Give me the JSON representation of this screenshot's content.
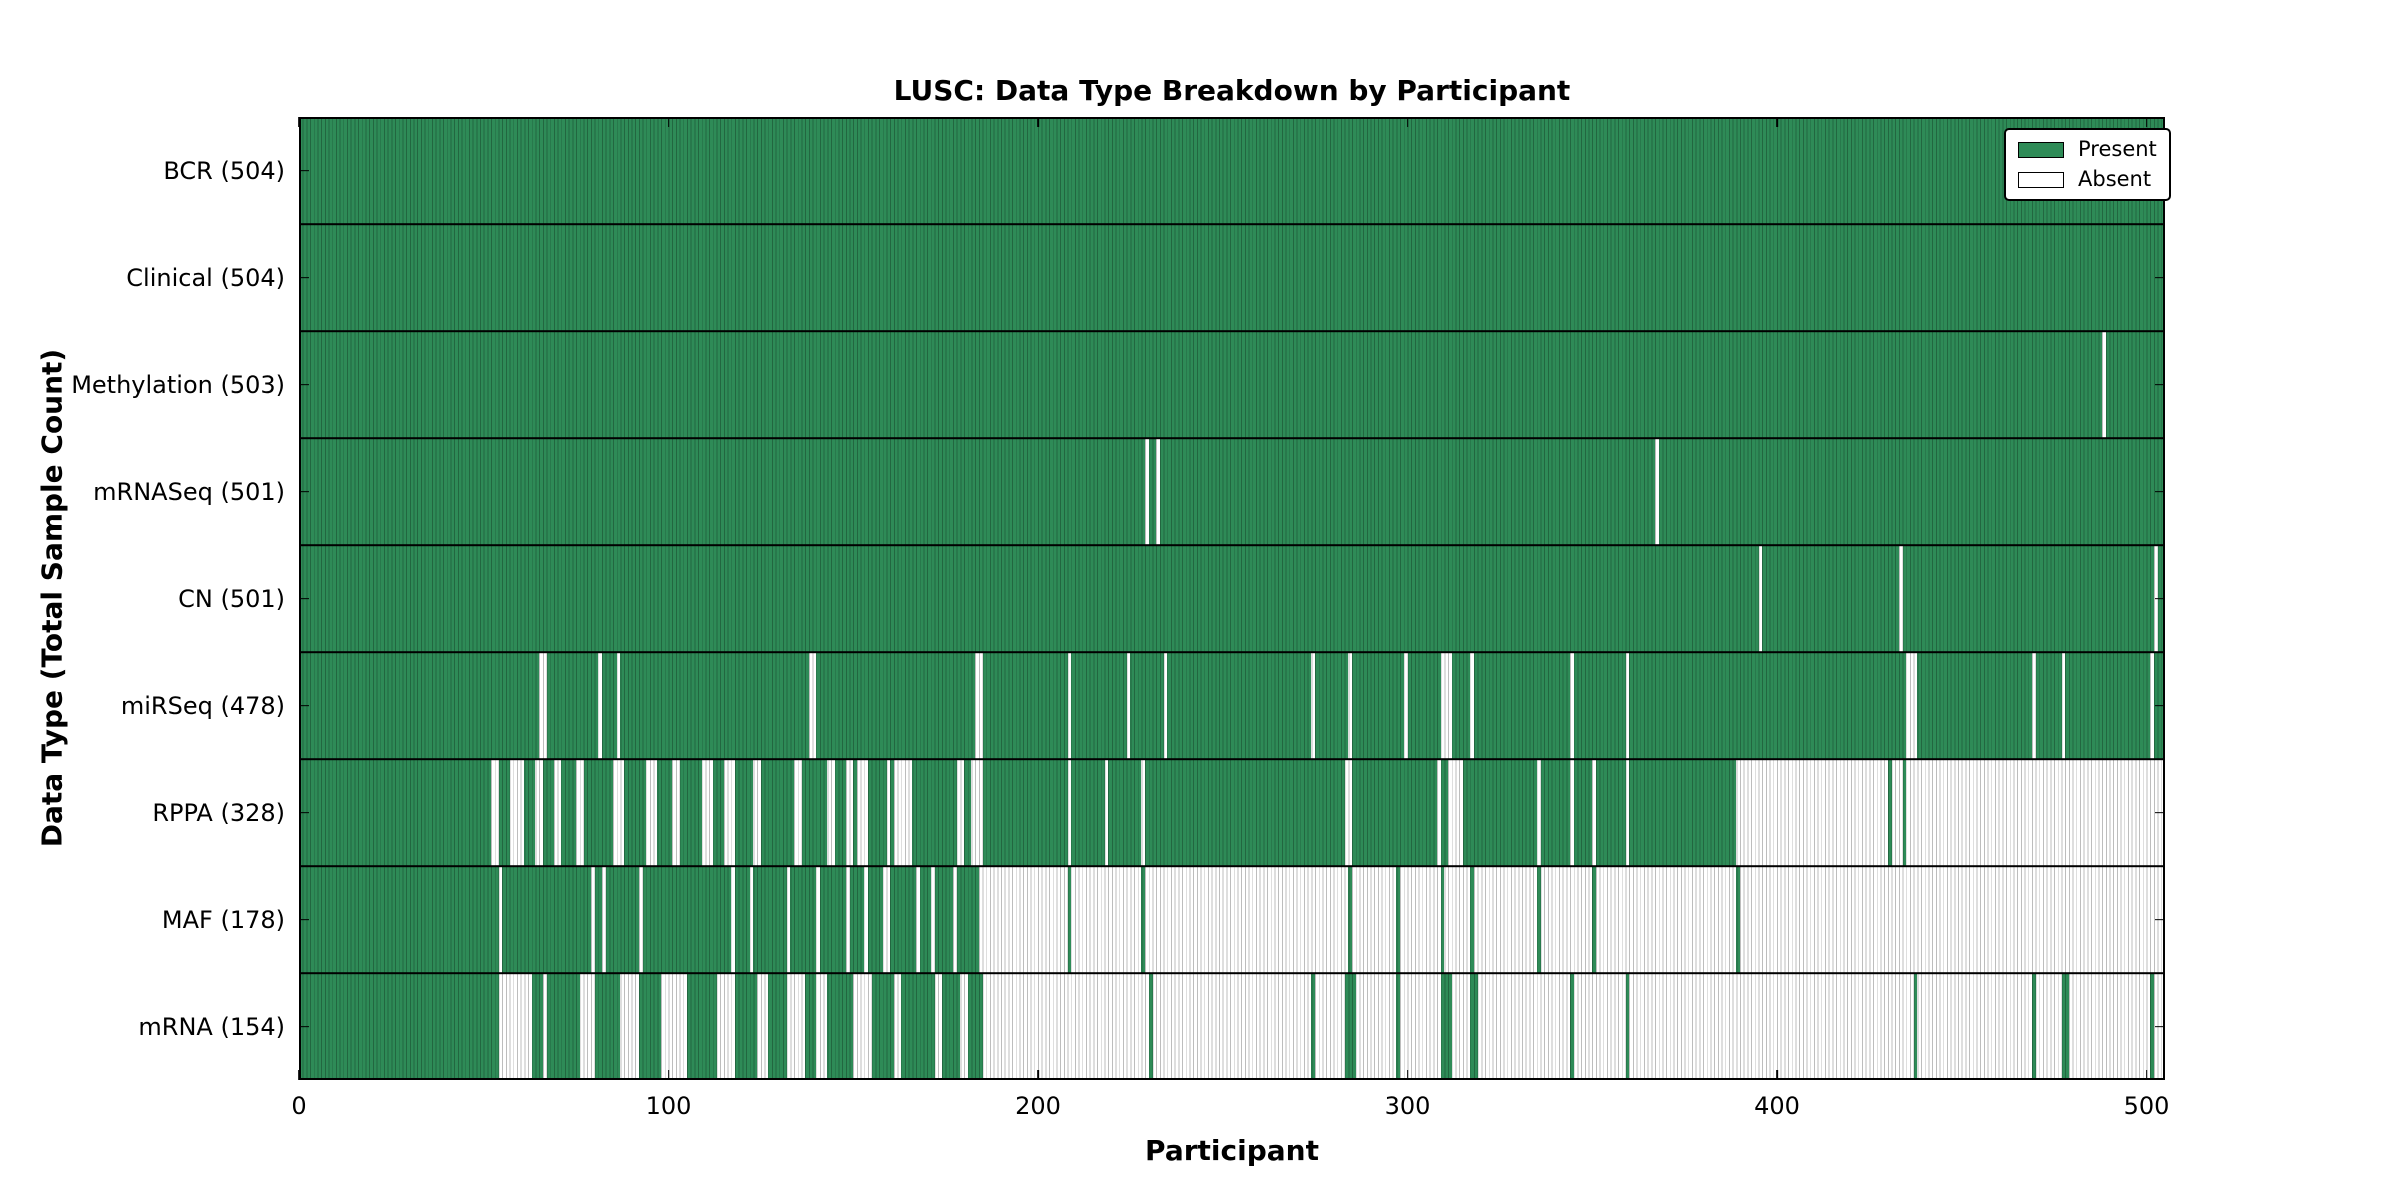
{
  "title": "LUSC: Data Type Breakdown by Participant",
  "colors": {
    "present": "#2e8b57",
    "absent": "#ffffff",
    "axis": "#000000",
    "background": "#ffffff"
  },
  "legend": {
    "items": [
      {
        "label": "Present",
        "color": "#2e8b57"
      },
      {
        "label": "Absent",
        "color": "#ffffff"
      }
    ]
  },
  "chart_data": {
    "type": "heatmap",
    "title": "LUSC: Data Type Breakdown by Participant",
    "xlabel": "Participant",
    "ylabel": "Data Type (Total Sample Count)",
    "x_ticks": [
      0,
      100,
      200,
      300,
      400,
      500
    ],
    "x_max": 505,
    "grid": false,
    "legend_position": "upper right",
    "cell_states": [
      "Present",
      "Absent"
    ],
    "rows": [
      {
        "label": "BCR (504)",
        "data_type": "BCR",
        "total_samples": 504,
        "absent_ranges": []
      },
      {
        "label": "Clinical (504)",
        "data_type": "Clinical",
        "total_samples": 504,
        "absent_ranges": []
      },
      {
        "label": "Methylation (503)",
        "data_type": "Methylation",
        "total_samples": 503,
        "absent_ranges": [
          [
            488,
            489
          ]
        ]
      },
      {
        "label": "mRNASeq (501)",
        "data_type": "mRNASeq",
        "total_samples": 501,
        "absent_ranges": [
          [
            229,
            230
          ],
          [
            232,
            233
          ],
          [
            367,
            368
          ]
        ]
      },
      {
        "label": "CN (501)",
        "data_type": "CN",
        "total_samples": 501,
        "absent_ranges": [
          [
            395,
            396
          ],
          [
            433,
            434
          ],
          [
            502,
            503
          ]
        ]
      },
      {
        "label": "miRSeq (478)",
        "data_type": "miRSeq",
        "total_samples": 478,
        "absent_ranges": [
          [
            65,
            67
          ],
          [
            81,
            82
          ],
          [
            86,
            87
          ],
          [
            138,
            140
          ],
          [
            183,
            185
          ],
          [
            208,
            209
          ],
          [
            224,
            225
          ],
          [
            234,
            235
          ],
          [
            274,
            275
          ],
          [
            284,
            285
          ],
          [
            299,
            300
          ],
          [
            309,
            312
          ],
          [
            317,
            318
          ],
          [
            344,
            345
          ],
          [
            359,
            360
          ],
          [
            435,
            438
          ],
          [
            469,
            470
          ],
          [
            477,
            478
          ],
          [
            501,
            502
          ]
        ]
      },
      {
        "label": "RPPA (328)",
        "data_type": "RPPA",
        "total_samples": 328,
        "absent_ranges": [
          [
            52,
            54
          ],
          [
            57,
            61
          ],
          [
            64,
            66
          ],
          [
            69,
            71
          ],
          [
            75,
            77
          ],
          [
            85,
            88
          ],
          [
            94,
            97
          ],
          [
            101,
            103
          ],
          [
            109,
            112
          ],
          [
            115,
            118
          ],
          [
            123,
            125
          ],
          [
            134,
            136
          ],
          [
            143,
            145
          ],
          [
            148,
            150
          ],
          [
            151,
            154
          ],
          [
            159,
            160
          ],
          [
            161,
            166
          ],
          [
            178,
            180
          ],
          [
            182,
            185
          ],
          [
            208,
            209
          ],
          [
            218,
            219
          ],
          [
            228,
            229
          ],
          [
            283,
            285
          ],
          [
            308,
            309
          ],
          [
            311,
            315
          ],
          [
            335,
            336
          ],
          [
            344,
            345
          ],
          [
            350,
            351
          ],
          [
            359,
            360
          ],
          [
            389,
            430
          ],
          [
            431,
            434
          ],
          [
            435,
            505
          ]
        ]
      },
      {
        "label": "MAF (178)",
        "data_type": "MAF",
        "total_samples": 178,
        "absent_ranges": [
          [
            54,
            55
          ],
          [
            79,
            80
          ],
          [
            82,
            83
          ],
          [
            92,
            93
          ],
          [
            117,
            118
          ],
          [
            122,
            123
          ],
          [
            132,
            133
          ],
          [
            140,
            141
          ],
          [
            148,
            149
          ],
          [
            153,
            154
          ],
          [
            158,
            160
          ],
          [
            167,
            168
          ],
          [
            171,
            172
          ],
          [
            177,
            178
          ],
          [
            184,
            208
          ],
          [
            209,
            228
          ],
          [
            229,
            284
          ],
          [
            285,
            297
          ],
          [
            298,
            309
          ],
          [
            310,
            317
          ],
          [
            318,
            335
          ],
          [
            336,
            350
          ],
          [
            351,
            389
          ],
          [
            390,
            505
          ]
        ]
      },
      {
        "label": "mRNA (154)",
        "data_type": "mRNA",
        "total_samples": 154,
        "absent_ranges": [
          [
            54,
            63
          ],
          [
            66,
            67
          ],
          [
            76,
            80
          ],
          [
            87,
            92
          ],
          [
            98,
            105
          ],
          [
            113,
            118
          ],
          [
            124,
            127
          ],
          [
            132,
            137
          ],
          [
            140,
            143
          ],
          [
            150,
            155
          ],
          [
            161,
            163
          ],
          [
            172,
            174
          ],
          [
            179,
            181
          ],
          [
            185,
            230
          ],
          [
            231,
            274
          ],
          [
            275,
            283
          ],
          [
            286,
            297
          ],
          [
            298,
            309
          ],
          [
            312,
            317
          ],
          [
            319,
            344
          ],
          [
            345,
            359
          ],
          [
            360,
            437
          ],
          [
            438,
            469
          ],
          [
            470,
            477
          ],
          [
            479,
            501
          ],
          [
            502,
            505
          ]
        ]
      }
    ]
  }
}
